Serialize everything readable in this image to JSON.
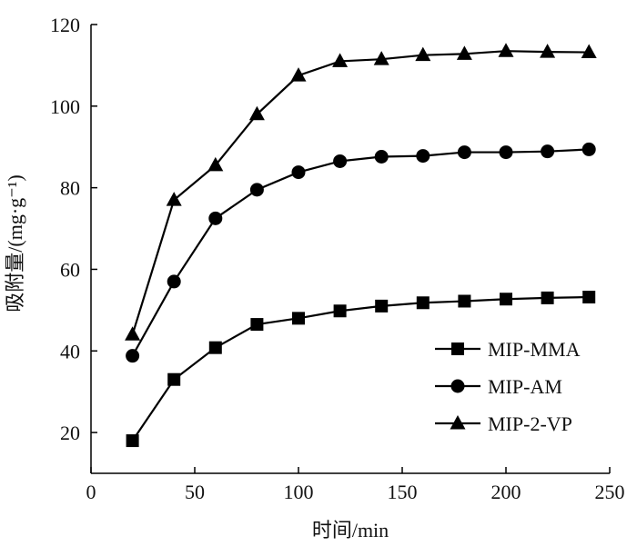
{
  "chart_data": {
    "type": "line",
    "title": "",
    "xlabel": "时间/min",
    "ylabel": "吸附量/(mg·g⁻¹)",
    "xlim": [
      0,
      250
    ],
    "ylim": [
      10,
      120
    ],
    "xticks": [
      0,
      50,
      100,
      150,
      200,
      250
    ],
    "yticks": [
      20,
      40,
      60,
      80,
      100,
      120
    ],
    "grid": false,
    "legend_position": "bottom-right",
    "x": [
      20,
      40,
      60,
      80,
      100,
      120,
      140,
      160,
      180,
      200,
      220,
      240
    ],
    "series": [
      {
        "name": "MIP-MMA",
        "marker": "square",
        "values": [
          18,
          33,
          40.8,
          46.5,
          48,
          49.8,
          51,
          51.8,
          52.2,
          52.7,
          53,
          53.2
        ]
      },
      {
        "name": "MIP-AM",
        "marker": "circle",
        "values": [
          38.8,
          57,
          72.5,
          79.5,
          83.8,
          86.5,
          87.6,
          87.8,
          88.7,
          88.7,
          88.9,
          89.4
        ]
      },
      {
        "name": "MIP-2-VP",
        "marker": "triangle",
        "values": [
          44,
          77,
          85.5,
          98,
          107.5,
          111,
          111.5,
          112.5,
          112.8,
          113.5,
          113.3,
          113.2
        ]
      }
    ],
    "colors": {
      "line": "#000000",
      "marker": "#000000",
      "axis": "#000000"
    }
  }
}
